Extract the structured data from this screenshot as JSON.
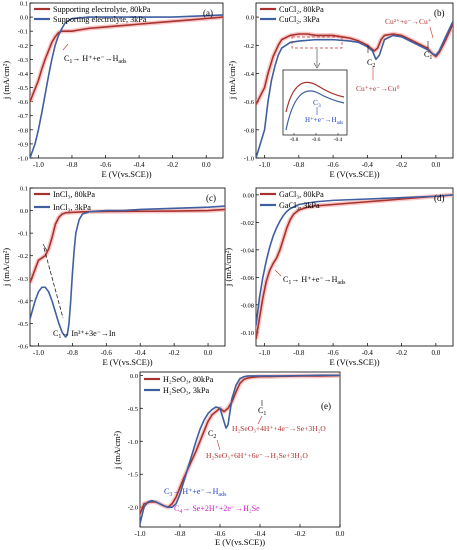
{
  "colors": {
    "p80": "#a8322d",
    "p3": "#3f5fa0",
    "ann": "#b03030",
    "blue": "#2040c0",
    "magenta": "#cc22cc",
    "dash": "#c83030",
    "glow": "#f5a3a3"
  },
  "chart_data": [
    {
      "type": "line",
      "panel": "a",
      "panel_label": "(a)",
      "xlabel": "E (V(vs.SCE))",
      "ylabel": "j (mA/cm²)",
      "xlim": [
        -1.05,
        0.1
      ],
      "ylim": [
        -1.0,
        0.1
      ],
      "xticks": [
        -1.0,
        -0.8,
        -0.6,
        -0.4,
        -0.2,
        0.0
      ],
      "xtick_labels": [
        "-1.0",
        "-0.8",
        "-0.6",
        "-0.4",
        "-0.2",
        "0.0"
      ],
      "yticks": [
        -1.0,
        -0.9,
        -0.8,
        -0.7,
        -0.6,
        -0.5,
        -0.4,
        -0.3,
        -0.2,
        -0.1,
        0.0,
        0.1
      ],
      "ytick_labels": [
        "-1.0",
        "-0.9",
        "-0.8",
        "-0.7",
        "-0.6",
        "-0.5",
        "-0.4",
        "-0.3",
        "-0.2",
        "-0.1",
        "0.0",
        "0.1"
      ],
      "legend": [
        "Supporting electrolyte, 80kPa",
        "Supporting electrolyte, 3kPa"
      ],
      "series": [
        {
          "name": "Supporting electrolyte, 80kPa",
          "color": "#a8322d",
          "x": [
            -1.05,
            -1.0,
            -0.98,
            -0.96,
            -0.94,
            -0.92,
            -0.9,
            -0.88,
            -0.86,
            -0.84,
            -0.82,
            -0.8,
            -0.75,
            -0.7,
            -0.6,
            -0.5,
            -0.4,
            -0.3,
            -0.2,
            -0.1,
            0.0,
            0.1
          ],
          "y": [
            -0.6,
            -0.45,
            -0.37,
            -0.3,
            -0.24,
            -0.18,
            -0.14,
            -0.11,
            -0.1,
            -0.1,
            -0.1,
            -0.1,
            -0.09,
            -0.08,
            -0.07,
            -0.06,
            -0.05,
            -0.04,
            -0.03,
            -0.02,
            -0.01,
            0.0
          ]
        },
        {
          "name": "Supporting electrolyte, 3kPa",
          "color": "#3f5fa0",
          "x": [
            -1.05,
            -1.02,
            -1.0,
            -0.98,
            -0.96,
            -0.94,
            -0.92,
            -0.9,
            -0.88,
            -0.86,
            -0.84,
            -0.8,
            -0.75,
            -0.7,
            -0.6,
            -0.4,
            -0.2,
            0.0,
            0.1
          ],
          "y": [
            -1.0,
            -0.9,
            -0.8,
            -0.68,
            -0.55,
            -0.42,
            -0.3,
            -0.2,
            -0.13,
            -0.08,
            -0.04,
            -0.01,
            -0.005,
            0.0,
            0.0,
            0.0,
            0.0,
            0.01,
            0.015
          ]
        }
      ],
      "annotations": [
        {
          "label": "C",
          "sub": "1",
          "rest": "→ H⁺+e⁻→H",
          "rest_sub": "ads"
        }
      ]
    },
    {
      "type": "line",
      "panel": "b",
      "panel_label": "(b)",
      "xlabel": "E (V(vs.SCE))",
      "ylabel": "j (mA/cm²)",
      "xlim": [
        -1.05,
        0.1
      ],
      "ylim": [
        -1.0,
        0.1
      ],
      "xticks": [
        -1.0,
        -0.8,
        -0.6,
        -0.4,
        -0.2,
        0.0
      ],
      "xtick_labels": [
        "-1.0",
        "-0.8",
        "-0.6",
        "-0.4",
        "-0.2",
        "0.0"
      ],
      "yticks": [
        -1.0,
        -0.8,
        -0.6,
        -0.4,
        -0.2,
        0.0
      ],
      "ytick_labels": [
        "-1.0",
        "-0.8",
        "-0.6",
        "-0.4",
        "-0.2",
        "0.0"
      ],
      "legend": [
        "CuCl₂, 80kPa",
        "CuCl₂, 3kPa"
      ],
      "series": [
        {
          "name": "CuCl₂, 80kPa",
          "color": "#a8322d",
          "x": [
            -1.05,
            -1.0,
            -0.98,
            -0.95,
            -0.92,
            -0.9,
            -0.85,
            -0.8,
            -0.75,
            -0.7,
            -0.65,
            -0.6,
            -0.55,
            -0.5,
            -0.45,
            -0.4,
            -0.38,
            -0.36,
            -0.34,
            -0.32,
            -0.3,
            -0.25,
            -0.2,
            -0.15,
            -0.1,
            -0.05,
            -0.02,
            0.0,
            0.02,
            0.05,
            0.1
          ],
          "y": [
            -0.62,
            -0.5,
            -0.4,
            -0.28,
            -0.2,
            -0.16,
            -0.13,
            -0.12,
            -0.12,
            -0.13,
            -0.13,
            -0.13,
            -0.14,
            -0.15,
            -0.17,
            -0.2,
            -0.22,
            -0.24,
            -0.22,
            -0.16,
            -0.13,
            -0.12,
            -0.13,
            -0.16,
            -0.19,
            -0.22,
            -0.26,
            -0.28,
            -0.25,
            -0.18,
            -0.05
          ]
        },
        {
          "name": "CuCl₂, 3kPa",
          "color": "#3f5fa0",
          "x": [
            -1.05,
            -1.0,
            -0.98,
            -0.96,
            -0.94,
            -0.92,
            -0.9,
            -0.85,
            -0.8,
            -0.7,
            -0.6,
            -0.5,
            -0.45,
            -0.4,
            -0.37,
            -0.35,
            -0.33,
            -0.3,
            -0.25,
            -0.2,
            -0.15,
            -0.1,
            -0.05,
            -0.02,
            0.0,
            0.02,
            0.05,
            0.1
          ],
          "y": [
            -1.0,
            -0.8,
            -0.6,
            -0.45,
            -0.35,
            -0.27,
            -0.22,
            -0.18,
            -0.17,
            -0.16,
            -0.16,
            -0.17,
            -0.18,
            -0.21,
            -0.24,
            -0.3,
            -0.27,
            -0.16,
            -0.13,
            -0.14,
            -0.17,
            -0.2,
            -0.23,
            -0.26,
            -0.27,
            -0.24,
            -0.16,
            -0.03
          ]
        }
      ],
      "annotations": [
        {
          "label": "Cu²⁺+e⁻→Cu⁺"
        },
        {
          "label": "C",
          "sub": "1"
        },
        {
          "label": "C",
          "sub": "2"
        },
        {
          "label": "Cu⁺+e⁻→Cu⁰"
        },
        {
          "label": "C",
          "sub": "3"
        },
        {
          "label": "H⁺+e⁻→H",
          "sub": "ads"
        }
      ],
      "inset": {
        "xticks": [
          -0.8,
          -0.6,
          -0.4
        ],
        "xtick_labels": [
          "-0.8",
          "-0.6",
          "-0.4"
        ]
      }
    },
    {
      "type": "line",
      "panel": "c",
      "panel_label": "(c)",
      "xlabel": "E (V(vs.SCE))",
      "ylabel": "j (mA/cm²)",
      "xlim": [
        -1.05,
        0.1
      ],
      "ylim": [
        -0.6,
        0.1
      ],
      "xticks": [
        -1.0,
        -0.8,
        -0.6,
        -0.4,
        -0.2,
        0.0
      ],
      "xtick_labels": [
        "-1.0",
        "-0.8",
        "-0.6",
        "-0.4",
        "-0.2",
        "0.0"
      ],
      "yticks": [
        -0.6,
        -0.5,
        -0.4,
        -0.3,
        -0.2,
        -0.1,
        0.0,
        0.1
      ],
      "ytick_labels": [
        "-0.6",
        "-0.5",
        "-0.4",
        "-0.3",
        "-0.2",
        "-0.1",
        "0.0",
        "0.1"
      ],
      "legend": [
        "InCl₃, 80kPa",
        "InCl₃, 3kPa"
      ],
      "series": [
        {
          "name": "InCl₃, 80kPa",
          "color": "#a8322d",
          "x": [
            -1.05,
            -1.02,
            -1.0,
            -0.98,
            -0.96,
            -0.94,
            -0.92,
            -0.9,
            -0.88,
            -0.86,
            -0.84,
            -0.8,
            -0.75,
            -0.7,
            -0.6,
            -0.4,
            -0.2,
            0.0,
            0.1
          ],
          "y": [
            -0.32,
            -0.26,
            -0.22,
            -0.21,
            -0.2,
            -0.17,
            -0.12,
            -0.06,
            -0.03,
            -0.015,
            -0.01,
            -0.008,
            -0.006,
            -0.005,
            -0.004,
            -0.003,
            -0.002,
            0.0,
            0.005
          ]
        },
        {
          "name": "InCl₃, 3kPa",
          "color": "#3f5fa0",
          "x": [
            -1.05,
            -1.02,
            -1.0,
            -0.98,
            -0.96,
            -0.94,
            -0.92,
            -0.9,
            -0.88,
            -0.86,
            -0.84,
            -0.83,
            -0.82,
            -0.81,
            -0.8,
            -0.79,
            -0.78,
            -0.76,
            -0.74,
            -0.7,
            -0.6,
            -0.5,
            -0.4,
            -0.2,
            0.0,
            0.1
          ],
          "y": [
            -0.48,
            -0.4,
            -0.36,
            -0.34,
            -0.34,
            -0.36,
            -0.4,
            -0.45,
            -0.5,
            -0.54,
            -0.56,
            -0.55,
            -0.5,
            -0.4,
            -0.28,
            -0.18,
            -0.1,
            -0.04,
            -0.015,
            -0.005,
            0.0,
            0.0,
            0.005,
            0.01,
            0.015,
            0.02
          ]
        }
      ],
      "annotations": [
        {
          "label": "C",
          "sub": "1",
          "rest": "→ In³⁺+3e⁻→In"
        }
      ]
    },
    {
      "type": "line",
      "panel": "d",
      "panel_label": "(d)",
      "xlabel": "E (V(vs.SCE))",
      "ylabel": "j (mA/cm²)",
      "xlim": [
        -1.05,
        0.1
      ],
      "ylim": [
        -0.11,
        0.005
      ],
      "xticks": [
        -1.0,
        -0.8,
        -0.6,
        -0.4,
        -0.2,
        0.0
      ],
      "xtick_labels": [
        "-1.0",
        "-0.8",
        "-0.6",
        "-0.4",
        "-0.2",
        "0.0"
      ],
      "yticks": [
        -0.1,
        -0.08,
        -0.06,
        -0.04,
        -0.02,
        0.0
      ],
      "ytick_labels": [
        "-0.10",
        "-0.08",
        "-0.06",
        "-0.04",
        "-0.02",
        "0.00"
      ],
      "legend": [
        "GaCl₃, 80kPa",
        "GaCl₃, 3kPa"
      ],
      "series": [
        {
          "name": "GaCl₃, 80kPa",
          "color": "#a8322d",
          "x": [
            -1.05,
            -1.03,
            -1.01,
            -0.99,
            -0.97,
            -0.95,
            -0.93,
            -0.91,
            -0.89,
            -0.87,
            -0.85,
            -0.83,
            -0.8,
            -0.75,
            -0.7,
            -0.6,
            -0.4,
            -0.2,
            0.0,
            0.1
          ],
          "y": [
            -0.105,
            -0.09,
            -0.075,
            -0.063,
            -0.055,
            -0.05,
            -0.046,
            -0.04,
            -0.032,
            -0.024,
            -0.018,
            -0.014,
            -0.011,
            -0.009,
            -0.008,
            -0.007,
            -0.005,
            -0.003,
            -0.001,
            0.0
          ]
        },
        {
          "name": "GaCl₃, 3kPa",
          "color": "#3f5fa0",
          "x": [
            -1.05,
            -1.03,
            -1.01,
            -0.99,
            -0.97,
            -0.95,
            -0.93,
            -0.91,
            -0.89,
            -0.87,
            -0.85,
            -0.8,
            -0.75,
            -0.7,
            -0.6,
            -0.4,
            -0.2,
            0.0,
            0.1
          ],
          "y": [
            -0.095,
            -0.075,
            -0.06,
            -0.048,
            -0.038,
            -0.03,
            -0.024,
            -0.019,
            -0.015,
            -0.012,
            -0.01,
            -0.007,
            -0.006,
            -0.005,
            -0.004,
            -0.003,
            -0.002,
            -0.001,
            0.0
          ]
        }
      ],
      "annotations": [
        {
          "label": "C",
          "sub": "1",
          "rest": "→ H⁺+e⁻→H",
          "rest_sub": "ads"
        }
      ]
    },
    {
      "type": "line",
      "panel": "e",
      "panel_label": "(e)",
      "xlabel": "E (V(vs.SCE))",
      "ylabel": "j (mA/cm²)",
      "xlim": [
        -1.0,
        0.0
      ],
      "ylim": [
        -2.3,
        0.05
      ],
      "xticks": [
        -1.0,
        -0.8,
        -0.6,
        -0.4,
        -0.2,
        0.0
      ],
      "xtick_labels": [
        "-1.0",
        "-0.8",
        "-0.6",
        "-0.4",
        "-0.2",
        "0.0"
      ],
      "yticks": [
        -2.0,
        -1.5,
        -1.0,
        -0.5,
        0.0
      ],
      "ytick_labels": [
        "-2.0",
        "-1.5",
        "-1.0",
        "-0.5",
        "0.0"
      ],
      "legend": [
        "H₂SeO₃, 80kPa",
        "H₂SeO₃, 3kPa"
      ],
      "series": [
        {
          "name": "H₂SeO₃, 80kPa",
          "color": "#a8322d",
          "x": [
            -1.0,
            -0.98,
            -0.95,
            -0.92,
            -0.9,
            -0.88,
            -0.86,
            -0.84,
            -0.82,
            -0.8,
            -0.78,
            -0.75,
            -0.72,
            -0.7,
            -0.68,
            -0.66,
            -0.64,
            -0.62,
            -0.6,
            -0.58,
            -0.56,
            -0.54,
            -0.52,
            -0.5,
            -0.48,
            -0.46,
            -0.44,
            -0.4,
            -0.35,
            -0.3,
            -0.2,
            -0.1,
            0.0
          ],
          "y": [
            -2.1,
            -1.95,
            -1.92,
            -1.92,
            -1.95,
            -1.98,
            -2.0,
            -1.95,
            -1.85,
            -1.7,
            -1.55,
            -1.35,
            -1.15,
            -1.0,
            -0.85,
            -0.7,
            -0.6,
            -0.55,
            -0.5,
            -0.55,
            -0.5,
            -0.4,
            -0.25,
            -0.12,
            -0.06,
            -0.04,
            -0.03,
            -0.02,
            -0.02,
            -0.015,
            -0.01,
            -0.01,
            -0.005
          ]
        },
        {
          "name": "H₂SeO₃, 3kPa",
          "color": "#3f5fa0",
          "x": [
            -1.0,
            -0.98,
            -0.96,
            -0.94,
            -0.92,
            -0.9,
            -0.88,
            -0.86,
            -0.84,
            -0.82,
            -0.8,
            -0.78,
            -0.76,
            -0.74,
            -0.72,
            -0.7,
            -0.68,
            -0.66,
            -0.64,
            -0.62,
            -0.6,
            -0.58,
            -0.57,
            -0.56,
            -0.55,
            -0.54,
            -0.52,
            -0.5,
            -0.48,
            -0.46,
            -0.44,
            -0.4,
            -0.3,
            -0.2,
            -0.1,
            0.0
          ],
          "y": [
            -2.25,
            -2.0,
            -1.92,
            -1.9,
            -1.92,
            -1.95,
            -1.98,
            -2.0,
            -2.0,
            -1.95,
            -1.8,
            -1.6,
            -1.4,
            -1.2,
            -1.0,
            -0.82,
            -0.68,
            -0.58,
            -0.52,
            -0.48,
            -0.5,
            -0.7,
            -0.8,
            -0.75,
            -0.55,
            -0.35,
            -0.15,
            -0.05,
            -0.02,
            -0.01,
            -0.01,
            -0.01,
            -0.01,
            -0.005,
            0.0,
            0.0
          ]
        }
      ],
      "annotations": [
        {
          "label": "C",
          "sub": "1"
        },
        {
          "label": "C",
          "sub": "2"
        },
        {
          "label": "H₂SeO₃+4H⁺+4e⁻→Se+3H₂O"
        },
        {
          "label": "H₂SeO₃+6H⁺+6e⁻→H₂Se+3H₂O"
        },
        {
          "label": "C",
          "sub": "3",
          "rest": "→ H⁺+e⁻→H",
          "rest_sub": "ads"
        },
        {
          "label": "C",
          "sub": "4",
          "rest": "→ Se+2H⁺+2e⁻→H₂Se"
        }
      ]
    }
  ]
}
